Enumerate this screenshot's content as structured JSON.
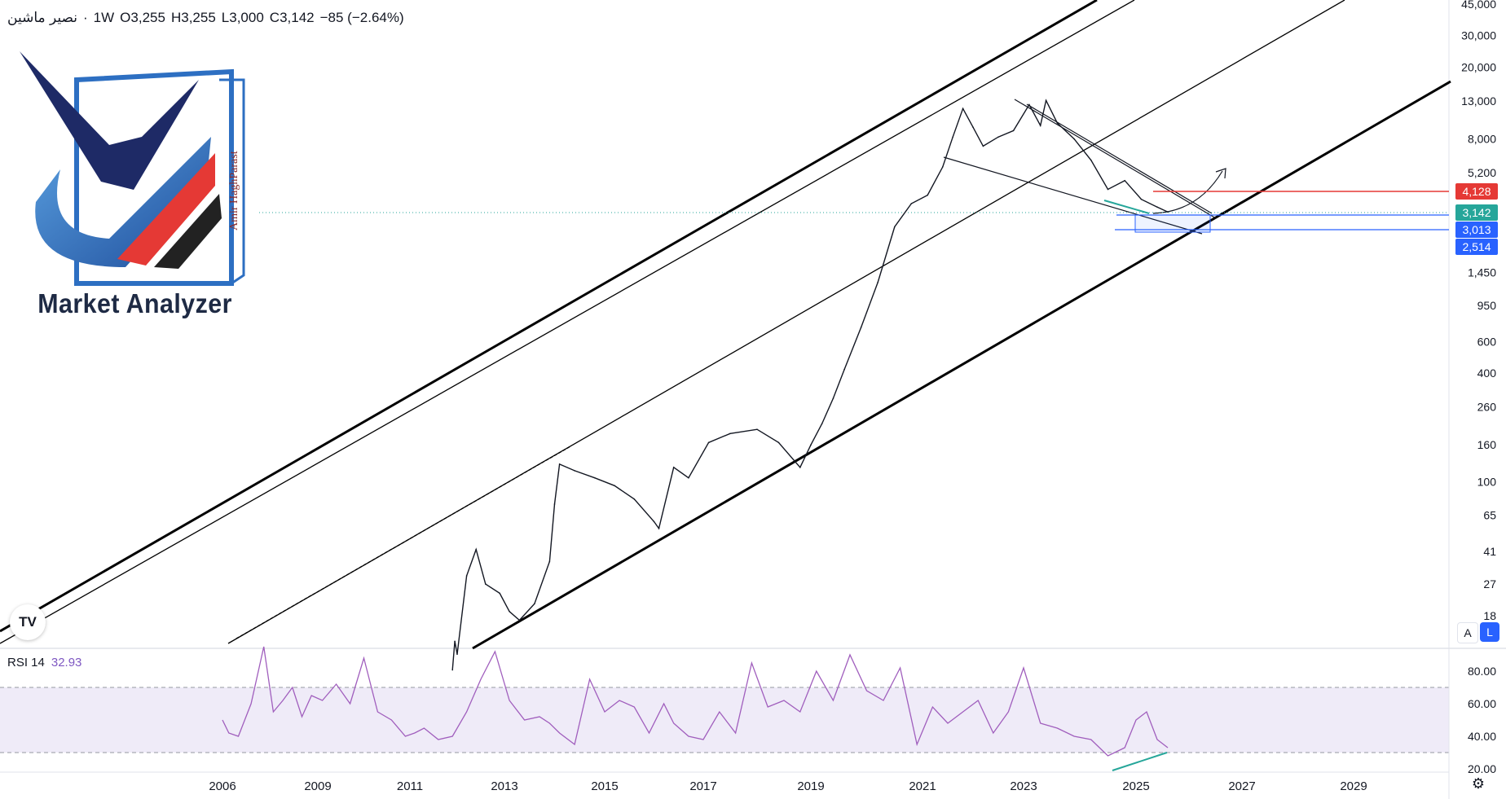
{
  "header": {
    "symbol": "نصیر ماشین",
    "separator": "·",
    "interval": "1W",
    "open_label": "O",
    "open": "3,255",
    "high_label": "H",
    "high": "3,255",
    "low_label": "L",
    "low": "3,000",
    "close_label": "C",
    "close": "3,142",
    "change": "−85 (−2.64%)"
  },
  "watermark": {
    "brand": "Market Analyzer",
    "author": "Amir HaghParast"
  },
  "colors": {
    "text": "#131722",
    "rsi_line": "#a05ebd",
    "rsi_band": "#7e57c2",
    "red_level": "#e53935",
    "teal_level": "#26a69a",
    "blue_level": "#2962ff",
    "divergence": "#26a69a"
  },
  "rsi": {
    "label": "RSI 14",
    "value": "32.93"
  },
  "price_axis_labels": [
    "45,000",
    "30,000",
    "20,000",
    "13,000",
    "8,000",
    "5,200",
    "1,450",
    "950",
    "600",
    "400",
    "260",
    "160",
    "100",
    "65",
    "41",
    "27",
    "18"
  ],
  "price_tags": [
    {
      "label": "4,128",
      "color": "#e53935"
    },
    {
      "label": "3,142",
      "color": "#26a69a"
    },
    {
      "label": "3,013",
      "color": "#2962ff"
    },
    {
      "label": "2,514",
      "color": "#2962ff"
    }
  ],
  "rsi_axis_labels": [
    "80.00",
    "60.00",
    "40.00",
    "20.00"
  ],
  "time_axis_labels": [
    "2006",
    "2009",
    "2011",
    "2013",
    "2015",
    "2017",
    "2019",
    "2021",
    "2023",
    "2025",
    "2027",
    "2029"
  ],
  "controls": {
    "scale_auto": "A",
    "scale_log": "L",
    "tv_logo": "TV"
  },
  "chart_data": {
    "type": "line",
    "price_scale": "log",
    "ylim": [
      16,
      46000
    ],
    "title": "",
    "xlabel": "",
    "ylabel": "",
    "series": [
      {
        "x": [
          2011.9,
          2011.95,
          2012.0,
          2012.2,
          2012.4,
          2012.6,
          2012.9,
          2013.1,
          2013.3,
          2013.6,
          2013.9,
          2014.0,
          2014.1,
          2014.4,
          2014.8,
          2015.2,
          2015.6,
          2016.0,
          2016.1,
          2016.4,
          2016.7,
          2017.1,
          2017.5,
          2018.0,
          2018.4,
          2018.8,
          2019.0,
          2019.2,
          2019.4,
          2019.6,
          2019.9,
          2020.2,
          2020.5,
          2020.8,
          2021.1,
          2021.4,
          2021.6,
          2021.8,
          2022.0,
          2022.2,
          2022.5,
          2022.8,
          2023.1,
          2023.3,
          2023.4,
          2023.6,
          2023.9,
          2024.2,
          2024.5,
          2024.8,
          2025.1,
          2025.4,
          2025.6
        ],
        "y": [
          9,
          13,
          11,
          30,
          42,
          27,
          24,
          19,
          17,
          21,
          36,
          75,
          125,
          115,
          105,
          95,
          80,
          60,
          55,
          120,
          105,
          165,
          185,
          195,
          165,
          120,
          160,
          210,
          290,
          420,
          720,
          1280,
          2600,
          3500,
          3900,
          5600,
          8200,
          11800,
          9300,
          7300,
          8200,
          8900,
          12400,
          9500,
          13100,
          9800,
          8000,
          6100,
          4200,
          4700,
          3700,
          3350,
          3142
        ]
      }
    ],
    "rsi": {
      "x": [
        2006.0,
        2006.2,
        2006.5,
        2006.9,
        2007.3,
        2007.6,
        2007.9,
        2008.2,
        2008.5,
        2008.8,
        2009.1,
        2009.4,
        2009.7,
        2010.0,
        2010.3,
        2010.6,
        2010.9,
        2011.1,
        2011.3,
        2011.6,
        2011.9,
        2012.2,
        2012.5,
        2012.8,
        2013.1,
        2013.4,
        2013.7,
        2013.9,
        2014.1,
        2014.4,
        2014.7,
        2015.0,
        2015.3,
        2015.6,
        2015.9,
        2016.2,
        2016.4,
        2016.7,
        2017.0,
        2017.3,
        2017.6,
        2017.9,
        2018.2,
        2018.5,
        2018.8,
        2019.1,
        2019.4,
        2019.7,
        2020.0,
        2020.3,
        2020.6,
        2020.9,
        2021.2,
        2021.5,
        2021.8,
        2022.1,
        2022.4,
        2022.7,
        2023.0,
        2023.3,
        2023.6,
        2023.9,
        2024.2,
        2024.5,
        2024.8,
        2025.0,
        2025.2,
        2025.4,
        2025.6
      ],
      "y": [
        50,
        42,
        40,
        60,
        95,
        55,
        62,
        70,
        52,
        65,
        62,
        72,
        60,
        88,
        55,
        50,
        40,
        42,
        45,
        38,
        40,
        55,
        75,
        92,
        62,
        50,
        52,
        48,
        42,
        35,
        75,
        55,
        62,
        58,
        42,
        60,
        48,
        40,
        38,
        55,
        42,
        85,
        58,
        62,
        55,
        80,
        62,
        90,
        68,
        62,
        82,
        35,
        58,
        48,
        55,
        62,
        42,
        55,
        82,
        48,
        45,
        40,
        38,
        28,
        33,
        50,
        55,
        38,
        33
      ]
    },
    "annotations": {
      "horizontal_levels": [
        4128,
        3142,
        3013,
        2514
      ],
      "rsi_bands": [
        30,
        70
      ],
      "channel": "rising logarithmic channel",
      "pattern": "falling wedge with breakout arrow",
      "rsi_divergence": "bullish"
    }
  }
}
